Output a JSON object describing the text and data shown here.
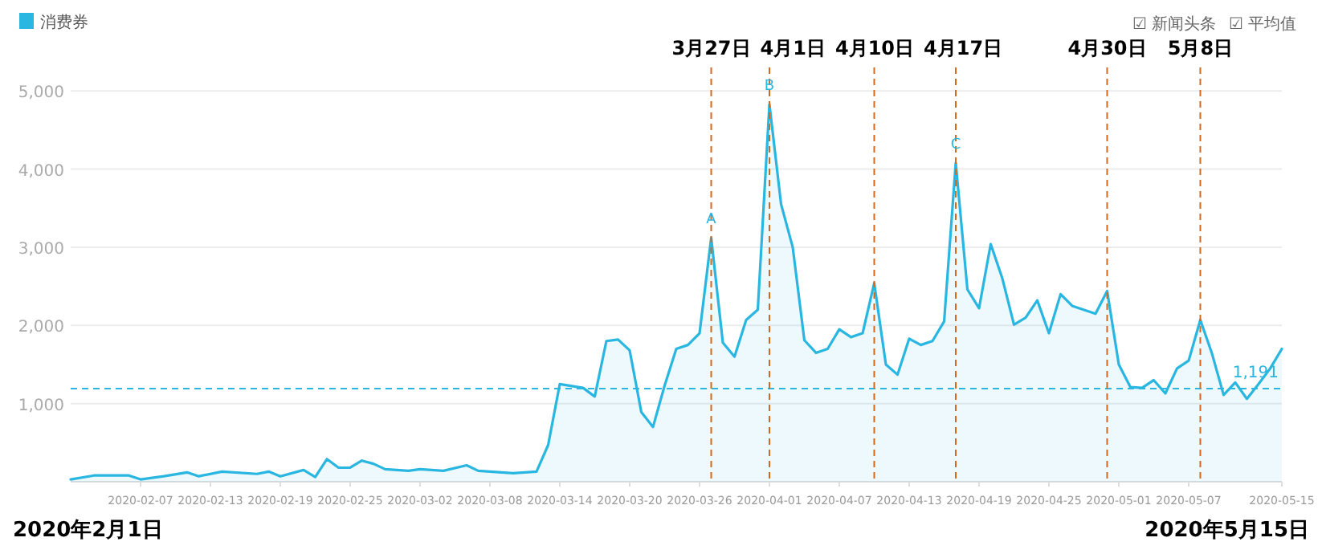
{
  "chart_data": {
    "type": "area",
    "x": [
      "2020-02-01",
      "2020-02-03",
      "2020-02-06",
      "2020-02-07",
      "2020-02-09",
      "2020-02-11",
      "2020-02-12",
      "2020-02-14",
      "2020-02-17",
      "2020-02-18",
      "2020-02-19",
      "2020-02-21",
      "2020-02-22",
      "2020-02-23",
      "2020-02-24",
      "2020-02-25",
      "2020-02-26",
      "2020-02-27",
      "2020-02-28",
      "2020-03-01",
      "2020-03-02",
      "2020-03-04",
      "2020-03-06",
      "2020-03-07",
      "2020-03-10",
      "2020-03-12",
      "2020-03-13",
      "2020-03-14",
      "2020-03-16",
      "2020-03-17",
      "2020-03-18",
      "2020-03-19",
      "2020-03-20",
      "2020-03-21",
      "2020-03-22",
      "2020-03-23",
      "2020-03-24",
      "2020-03-25",
      "2020-03-26",
      "2020-03-27",
      "2020-03-28",
      "2020-03-29",
      "2020-03-30",
      "2020-03-31",
      "2020-04-01",
      "2020-04-02",
      "2020-04-03",
      "2020-04-04",
      "2020-04-05",
      "2020-04-06",
      "2020-04-07",
      "2020-04-08",
      "2020-04-09",
      "2020-04-10",
      "2020-04-11",
      "2020-04-12",
      "2020-04-13",
      "2020-04-14",
      "2020-04-15",
      "2020-04-16",
      "2020-04-17",
      "2020-04-18",
      "2020-04-19",
      "2020-04-20",
      "2020-04-21",
      "2020-04-22",
      "2020-04-23",
      "2020-04-24",
      "2020-04-25",
      "2020-04-26",
      "2020-04-27",
      "2020-04-29",
      "2020-04-30",
      "2020-05-01",
      "2020-05-02",
      "2020-05-03",
      "2020-05-04",
      "2020-05-05",
      "2020-05-06",
      "2020-05-07",
      "2020-05-08",
      "2020-05-09",
      "2020-05-10",
      "2020-05-11",
      "2020-05-12",
      "2020-05-13",
      "2020-05-14",
      "2020-05-15"
    ],
    "series": [
      {
        "name": "消费券",
        "color": "#29b6e0",
        "values": [
          30,
          80,
          80,
          30,
          70,
          120,
          70,
          130,
          100,
          130,
          70,
          150,
          60,
          290,
          180,
          180,
          270,
          230,
          160,
          140,
          160,
          140,
          210,
          140,
          110,
          130,
          470,
          1250,
          1200,
          1090,
          1800,
          1820,
          1680,
          890,
          700,
          1230,
          1700,
          1750,
          1900,
          3120,
          1780,
          1600,
          2070,
          2200,
          4830,
          3550,
          3000,
          1810,
          1650,
          1700,
          1950,
          1850,
          1900,
          2540,
          1500,
          1370,
          1830,
          1750,
          1800,
          2050,
          4080,
          2460,
          2220,
          3040,
          2600,
          2010,
          2100,
          2320,
          1900,
          2400,
          2250,
          2150,
          2440,
          1500,
          1210,
          1200,
          1300,
          1130,
          1450,
          1550,
          2070,
          1640,
          1110,
          1270,
          1060,
          1250,
          1450,
          1700
        ]
      }
    ],
    "xlim": [
      "2020-02-01",
      "2020-05-15"
    ],
    "xticks": [
      "2020-02-07",
      "2020-02-13",
      "2020-02-19",
      "2020-02-25",
      "2020-03-02",
      "2020-03-08",
      "2020-03-14",
      "2020-03-20",
      "2020-03-26",
      "2020-04-01",
      "2020-04-07",
      "2020-04-13",
      "2020-04-19",
      "2020-04-25",
      "2020-05-01",
      "2020-05-07",
      "2020-05-15"
    ],
    "ylim": [
      0,
      5300
    ],
    "yticks": [
      {
        "value": 1000,
        "label": "1,000"
      },
      {
        "value": 2000,
        "label": "2,000"
      },
      {
        "value": 3000,
        "label": "3,000"
      },
      {
        "value": 4000,
        "label": "4,000"
      },
      {
        "value": 5000,
        "label": "5,000"
      }
    ],
    "grid": "y",
    "legend": "top left",
    "marker": "none",
    "line_style": "solid",
    "ref_lines": [
      {
        "axis": "y",
        "value": 1191,
        "label": "1,191",
        "color": "#29b6e0",
        "line_style": "dashed"
      },
      {
        "axis": "x",
        "value": "2020-03-27",
        "label": "3月27日",
        "color": "#d2691e",
        "line_style": "dashed"
      },
      {
        "axis": "x",
        "value": "2020-04-01",
        "label": "4月1日",
        "color": "#d2691e",
        "line_style": "dashed"
      },
      {
        "axis": "x",
        "value": "2020-04-10",
        "label": "4月10日",
        "color": "#d2691e",
        "line_style": "dashed"
      },
      {
        "axis": "x",
        "value": "2020-04-17",
        "label": "4月17日",
        "color": "#d2691e",
        "line_style": "dashed"
      },
      {
        "axis": "x",
        "value": "2020-04-30",
        "label": "4月30日",
        "color": "#d2691e",
        "line_style": "dashed"
      },
      {
        "axis": "x",
        "value": "2020-05-08",
        "label": "5月8日",
        "color": "#d2691e",
        "line_style": "dashed"
      }
    ],
    "annotations": [
      {
        "text": "A",
        "x": "2020-03-27",
        "y": 3120
      },
      {
        "text": "B",
        "x": "2020-04-01",
        "y": 4830
      },
      {
        "text": "C",
        "x": "2020-04-17",
        "y": 4080
      },
      "2020年2月1日",
      "2020年5月15日",
      "☑ 新闻头条",
      "☑ 平均值"
    ]
  }
}
